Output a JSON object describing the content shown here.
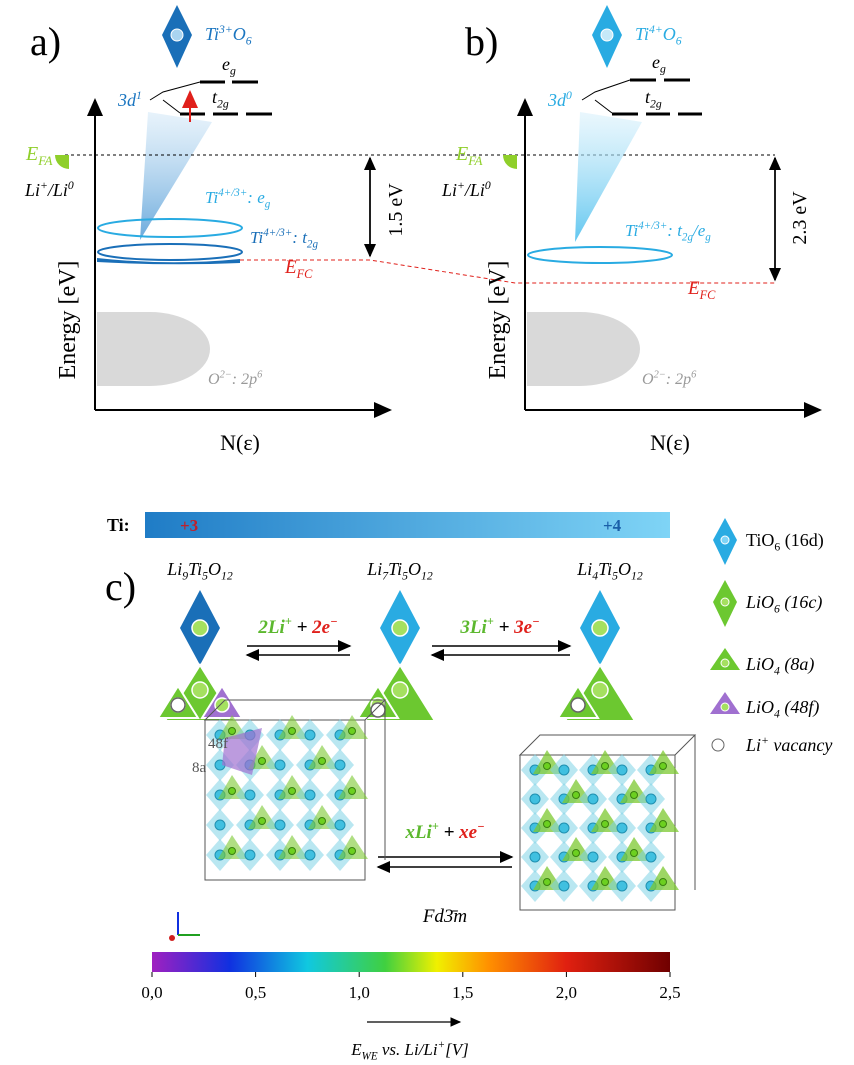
{
  "panel_a": {
    "label": "a)",
    "ion": [
      "Ti",
      {
        "t": "3+",
        "pos": "sup"
      },
      "O",
      {
        "t": "6",
        "pos": "sub"
      }
    ],
    "config": [
      "3d",
      {
        "t": "1",
        "pos": "sup"
      }
    ],
    "eg": [
      "e",
      {
        "t": "g",
        "pos": "sub"
      }
    ],
    "t2g": [
      "t",
      {
        "t": "2g",
        "pos": "sub"
      }
    ],
    "efa": [
      "E",
      {
        "t": "FA",
        "pos": "sub"
      }
    ],
    "couple": [
      "Li",
      {
        "t": "+",
        "pos": "sup"
      },
      "/Li",
      {
        "t": "0",
        "pos": "sup"
      }
    ],
    "band_upper": [
      "Ti",
      {
        "t": "4+/3+",
        "pos": "sup"
      },
      ": e",
      {
        "t": "g",
        "pos": "sub"
      }
    ],
    "band_lower": [
      "Ti",
      {
        "t": "4+/3+",
        "pos": "sup"
      },
      ": t",
      {
        "t": "2g",
        "pos": "sub"
      }
    ],
    "gap": "1.5 eV",
    "efc": [
      "E",
      {
        "t": "FC",
        "pos": "sub"
      }
    ],
    "oxygen": [
      "O",
      {
        "t": "2−",
        "pos": "sup"
      },
      ": 2p",
      {
        "t": "6",
        "pos": "sup"
      }
    ],
    "y_label": "Energy [eV]",
    "x_label": "N(ε)"
  },
  "panel_b": {
    "label": "b)",
    "ion": [
      "Ti",
      {
        "t": "4+",
        "pos": "sup"
      },
      "O",
      {
        "t": "6",
        "pos": "sub"
      }
    ],
    "config": [
      "3d",
      {
        "t": "0",
        "pos": "sup"
      }
    ],
    "eg": [
      "e",
      {
        "t": "g",
        "pos": "sub"
      }
    ],
    "t2g": [
      "t",
      {
        "t": "2g",
        "pos": "sub"
      }
    ],
    "efa": [
      "E",
      {
        "t": "FA",
        "pos": "sub"
      }
    ],
    "couple": [
      "Li",
      {
        "t": "+",
        "pos": "sup"
      },
      "/Li",
      {
        "t": "0",
        "pos": "sup"
      }
    ],
    "band": [
      "Ti",
      {
        "t": "4+/3+",
        "pos": "sup"
      },
      ": t",
      {
        "t": "2g",
        "pos": "sub"
      },
      "/e",
      {
        "t": "g",
        "pos": "sub"
      }
    ],
    "gap": "2.3 eV",
    "efc": [
      "E",
      {
        "t": "FC",
        "pos": "sub"
      }
    ],
    "oxygen": [
      "O",
      {
        "t": "2−",
        "pos": "sup"
      },
      ": 2p",
      {
        "t": "6",
        "pos": "sup"
      }
    ],
    "y_label": "Energy [eV]",
    "x_label": "N(ε)"
  },
  "panel_c": {
    "label": "c)",
    "ti_label": "Ti:",
    "ox_low": "+3",
    "ox_high": "+4",
    "compounds": [
      [
        "Li",
        {
          "t": "9",
          "pos": "sub"
        },
        "Ti",
        {
          "t": "5",
          "pos": "sub"
        },
        "O",
        {
          "t": "12",
          "pos": "sub"
        }
      ],
      [
        "Li",
        {
          "t": "7",
          "pos": "sub"
        },
        "Ti",
        {
          "t": "5",
          "pos": "sub"
        },
        "O",
        {
          "t": "12",
          "pos": "sub"
        }
      ],
      [
        "Li",
        {
          "t": "4",
          "pos": "sub"
        },
        "Ti",
        {
          "t": "5",
          "pos": "sub"
        },
        "O",
        {
          "t": "12",
          "pos": "sub"
        }
      ]
    ],
    "reactions": [
      [
        {
          "t": "2Li",
          "color": "#5cb82e"
        },
        {
          "t": "+",
          "pos": "sup",
          "color": "#5cb82e"
        },
        " + ",
        {
          "t": "2e",
          "color": "#e0201b"
        },
        {
          "t": "−",
          "pos": "sup",
          "color": "#e0201b"
        }
      ],
      [
        {
          "t": "3Li",
          "color": "#5cb82e"
        },
        {
          "t": "+",
          "pos": "sup",
          "color": "#5cb82e"
        },
        " + ",
        {
          "t": "3e",
          "color": "#e0201b"
        },
        {
          "t": "−",
          "pos": "sup",
          "color": "#e0201b"
        }
      ]
    ],
    "legend": [
      [
        "TiO",
        {
          "t": "6",
          "pos": "sub"
        },
        " (16d)"
      ],
      [
        "LiO",
        {
          "t": "6",
          "pos": "sub"
        },
        " (16c)"
      ],
      [
        "LiO",
        {
          "t": "4",
          "pos": "sub"
        },
        " (8a)"
      ],
      [
        "LiO",
        {
          "t": "4",
          "pos": "sub"
        },
        " (48f)"
      ],
      [
        "Li",
        {
          "t": "+",
          "pos": "sup"
        },
        " vacancy"
      ]
    ],
    "site_48f": "48f",
    "site_8a": "8a",
    "crystal_reaction": [
      {
        "t": "xLi",
        "color": "#5cb82e"
      },
      {
        "t": "+",
        "pos": "sup",
        "color": "#5cb82e"
      },
      " + ",
      {
        "t": "xe",
        "color": "#e0201b"
      },
      {
        "t": "−",
        "pos": "sup",
        "color": "#e0201b"
      }
    ],
    "space_group": "Fd3̄m"
  },
  "colorbar": {
    "lim": [
      0,
      2.5
    ],
    "ticks": [
      {
        "value": 0,
        "label": "0,0"
      },
      {
        "value": 0.5,
        "label": "0,5"
      },
      {
        "value": 1,
        "label": "1,0"
      },
      {
        "value": 1.5,
        "label": "1,5"
      },
      {
        "value": 2,
        "label": "2,0"
      },
      {
        "value": 2.5,
        "label": "2,5"
      }
    ],
    "label": [
      "E",
      {
        "t": "WE",
        "pos": "sub"
      },
      " vs. Li/Li",
      {
        "t": "+",
        "pos": "sup"
      },
      "[V]"
    ]
  }
}
